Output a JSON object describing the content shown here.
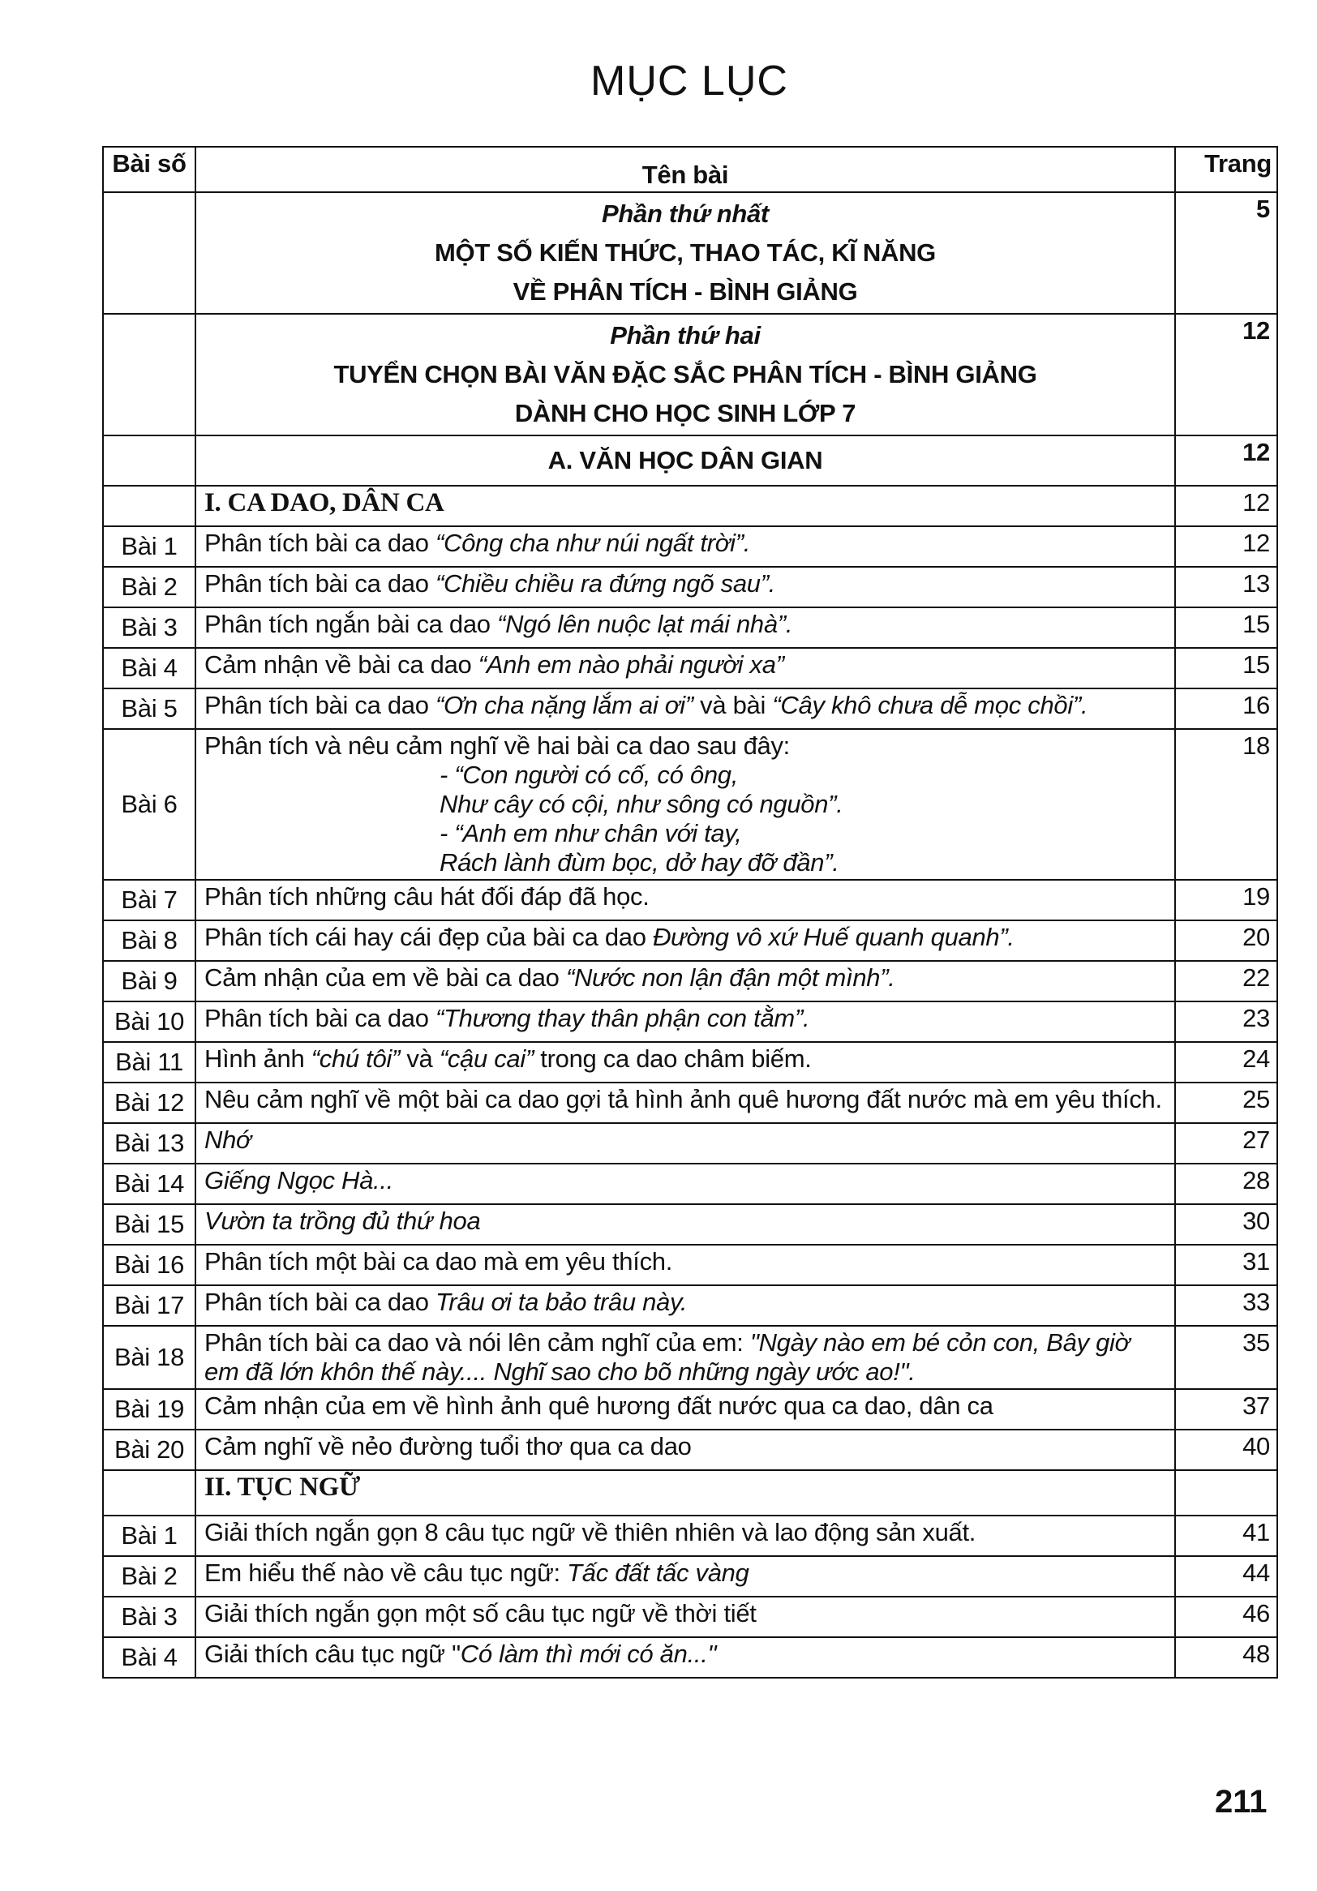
{
  "title": "MỤC LỤC",
  "headers": {
    "no": "Bài số",
    "name": "Tên bài",
    "page": "Trang"
  },
  "parts": [
    {
      "label": "Phần thứ nhất",
      "lines": [
        "MỘT SỐ KIẾN THỨC, THAO TÁC, KĨ NĂNG",
        "VỀ PHÂN TÍCH - BÌNH GIẢNG"
      ],
      "page": "5"
    },
    {
      "label": "Phần thứ hai",
      "lines": [
        "TUYỂN CHỌN BÀI VĂN ĐẶC SẮC PHÂN TÍCH - BÌNH GIẢNG",
        "DÀNH CHO HỌC SINH LỚP 7"
      ],
      "page": "12"
    }
  ],
  "section_a": {
    "label": "A. VĂN HỌC DÂN GIAN",
    "page": "12"
  },
  "section_1": {
    "label": "I. CA DAO, DÂN CA",
    "page": "12"
  },
  "ca_dao": [
    {
      "no": "Bài 1",
      "parts": [
        [
          "Phân tích bài ca dao ",
          0
        ],
        [
          "“Công cha như núi ngất trời”.",
          1
        ]
      ],
      "page": "12"
    },
    {
      "no": "Bài 2",
      "parts": [
        [
          "Phân tích bài ca dao ",
          0
        ],
        [
          "“Chiều chiều ra đứng ngõ sau”.",
          1
        ]
      ],
      "page": "13"
    },
    {
      "no": "Bài 3",
      "parts": [
        [
          "Phân tích ngắn bài ca dao ",
          0
        ],
        [
          "“Ngó lên nuộc lạt mái nhà”.",
          1
        ]
      ],
      "page": "15"
    },
    {
      "no": "Bài 4",
      "parts": [
        [
          "Cảm nhận về bài ca dao ",
          0
        ],
        [
          "“Anh em nào phải người xa”",
          1
        ]
      ],
      "page": "15"
    },
    {
      "no": "Bài 5",
      "parts": [
        [
          "Phân tích bài ca dao ",
          0
        ],
        [
          "“Ơn cha nặng lắm ai ơi”",
          1
        ],
        [
          " và bài ",
          0
        ],
        [
          "“Cây khô chưa dễ mọc chồi”.",
          1
        ]
      ],
      "page": "16"
    },
    {
      "no": "Bài 6",
      "parts": [
        [
          "Phân tích và nêu cảm nghĩ về hai bài ca dao sau đây:",
          0
        ]
      ],
      "poem": [
        "-  “Con người có cố, có ông,",
        "Như cây có cội, như sông có nguồn”.",
        "-  “Anh em như chân với tay,",
        "Rách lành đùm bọc, dở hay đỡ đần”."
      ],
      "page": "18"
    },
    {
      "no": "Bài 7",
      "parts": [
        [
          "Phân tích những câu hát đối đáp đã học.",
          0
        ]
      ],
      "page": "19"
    },
    {
      "no": "Bài 8",
      "parts": [
        [
          "Phân tích cái hay cái đẹp của bài ca dao ",
          0
        ],
        [
          "Đường vô xứ Huế quanh quanh”.",
          1
        ]
      ],
      "page": "20"
    },
    {
      "no": "Bài 9",
      "parts": [
        [
          "Cảm nhận của em về bài ca dao ",
          0
        ],
        [
          "“Nước non lận đận một mình”.",
          1
        ]
      ],
      "page": "22"
    },
    {
      "no": "Bài 10",
      "parts": [
        [
          "Phân tích bài ca dao ",
          0
        ],
        [
          "“Thương thay thân phận con tằm”.",
          1
        ]
      ],
      "page": "23"
    },
    {
      "no": "Bài 11",
      "parts": [
        [
          "Hình ảnh ",
          0
        ],
        [
          "“chú tôi”",
          1
        ],
        [
          " và ",
          0
        ],
        [
          "“cậu cai”",
          1
        ],
        [
          " trong ca dao châm biếm.",
          0
        ]
      ],
      "page": "24"
    },
    {
      "no": "Bài 12",
      "parts": [
        [
          "Nêu cảm nghĩ về một bài ca dao gợi tả hình ảnh quê hương đất nước mà em yêu thích.",
          0
        ]
      ],
      "page": "25"
    },
    {
      "no": "Bài 13",
      "parts": [
        [
          "Nhớ",
          1
        ]
      ],
      "page": "27"
    },
    {
      "no": "Bài 14",
      "parts": [
        [
          "Giếng Ngọc Hà...",
          1
        ]
      ],
      "page": "28"
    },
    {
      "no": "Bài 15",
      "parts": [
        [
          "Vườn ta trồng đủ thứ hoa",
          1
        ]
      ],
      "page": "30"
    },
    {
      "no": "Bài 16",
      "parts": [
        [
          "Phân tích một bài ca dao mà em yêu thích.",
          0
        ]
      ],
      "page": "31"
    },
    {
      "no": "Bài 17",
      "parts": [
        [
          "Phân tích bài ca dao ",
          0
        ],
        [
          "Trâu ơi ta bảo trâu này.",
          1
        ]
      ],
      "page": "33"
    },
    {
      "no": "Bài 18",
      "parts": [
        [
          "Phân tích bài ca dao và nói lên cảm nghĩ của em: ",
          0
        ],
        [
          "\"Ngày nào em bé cỏn con, Bây giờ em đã lớn khôn thế này.... Nghĩ sao cho bõ những ngày ước ao!\".",
          1
        ]
      ],
      "page": "35"
    },
    {
      "no": "Bài 19",
      "parts": [
        [
          "Cảm nhận của em về hình ảnh quê hương đất nước qua ca dao, dân ca",
          0
        ]
      ],
      "page": "37"
    },
    {
      "no": "Bài 20",
      "parts": [
        [
          "Cảm nghĩ về nẻo đường tuổi thơ qua ca dao",
          0
        ]
      ],
      "page": "40"
    }
  ],
  "section_2": {
    "label": "II. TỤC NGỮ",
    "page": ""
  },
  "tuc_ngu": [
    {
      "no": "Bài 1",
      "parts": [
        [
          "Giải thích ngắn gọn 8 câu tục ngữ về thiên nhiên và lao động sản xuất.",
          0
        ]
      ],
      "page": "41"
    },
    {
      "no": "Bài 2",
      "parts": [
        [
          "Em hiểu thế nào về câu tục ngữ: ",
          0
        ],
        [
          "Tấc đất tấc vàng",
          1
        ]
      ],
      "page": "44"
    },
    {
      "no": "Bài 3",
      "parts": [
        [
          "Giải thích ngắn gọn một số câu tục ngữ về thời tiết",
          0
        ]
      ],
      "page": "46"
    },
    {
      "no": "Bài 4",
      "parts": [
        [
          "Giải thích câu tục ngữ \"",
          0
        ],
        [
          "Có làm thì mới có ăn...\"",
          1
        ]
      ],
      "page": "48"
    }
  ],
  "page_number": "211"
}
